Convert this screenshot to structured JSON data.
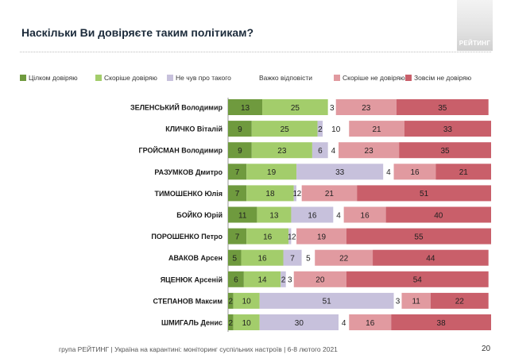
{
  "title": "Наскільки Ви довіряєте таким політикам?",
  "logo_text": "РЕЙТИНГ",
  "footer": "група РЕЙТИНГ | Україна на карантині: моніторинг суспільних настроїв | 6-8 лютого 2021",
  "page_number": "20",
  "legend": [
    {
      "label": "Цілком довіряю",
      "color": "#6f9a3e"
    },
    {
      "label": "Скоріше довіряю",
      "color": "#a3cd6b"
    },
    {
      "label": "Не чув про такого",
      "color": "#c7c1dc"
    },
    {
      "label": "Важко відповісти",
      "color": "#ffffff"
    },
    {
      "label": "Скоріше не довіряю",
      "color": "#e19aa0"
    },
    {
      "label": "Зовсім не довіряю",
      "color": "#c95f6a"
    }
  ],
  "chart_data": {
    "type": "bar",
    "orientation": "horizontal",
    "stacked": true,
    "categories": [
      "ЗЕЛЕНСЬКИЙ Володимир",
      "КЛИЧКО Віталій",
      "ГРОЙСМАН Володимир",
      "РАЗУМКОВ Дмитро",
      "ТИМОШЕНКО Юлія",
      "БОЙКО Юрій",
      "ПОРОШЕНКО Петро",
      "АВАКОВ Арсен",
      "ЯЦЕНЮК Арсеній",
      "СТЕПАНОВ Максим",
      "ШМИГАЛЬ Денис"
    ],
    "series": [
      {
        "name": "Цілком довіряю",
        "color": "#6f9a3e",
        "values": [
          13,
          9,
          9,
          7,
          7,
          11,
          7,
          5,
          6,
          2,
          2
        ]
      },
      {
        "name": "Скоріше довіряю",
        "color": "#a3cd6b",
        "values": [
          25,
          25,
          23,
          19,
          18,
          13,
          16,
          16,
          14,
          10,
          10
        ]
      },
      {
        "name": "Не чув про такого",
        "color": "#c7c1dc",
        "values": [
          0,
          2,
          6,
          33,
          1,
          16,
          1,
          7,
          2,
          51,
          30
        ]
      },
      {
        "name": "Важко відповісти",
        "color": "#ffffff",
        "values": [
          3,
          10,
          4,
          4,
          2,
          4,
          2,
          5,
          3,
          3,
          4
        ]
      },
      {
        "name": "Скоріше не довіряю",
        "color": "#e19aa0",
        "values": [
          23,
          21,
          23,
          16,
          21,
          16,
          19,
          22,
          20,
          11,
          16
        ]
      },
      {
        "name": "Зовсім не довіряю",
        "color": "#c95f6a",
        "values": [
          35,
          33,
          35,
          21,
          51,
          40,
          55,
          44,
          54,
          22,
          38
        ]
      }
    ],
    "xlim": [
      0,
      100
    ],
    "grid": false,
    "legend_position": "top"
  }
}
